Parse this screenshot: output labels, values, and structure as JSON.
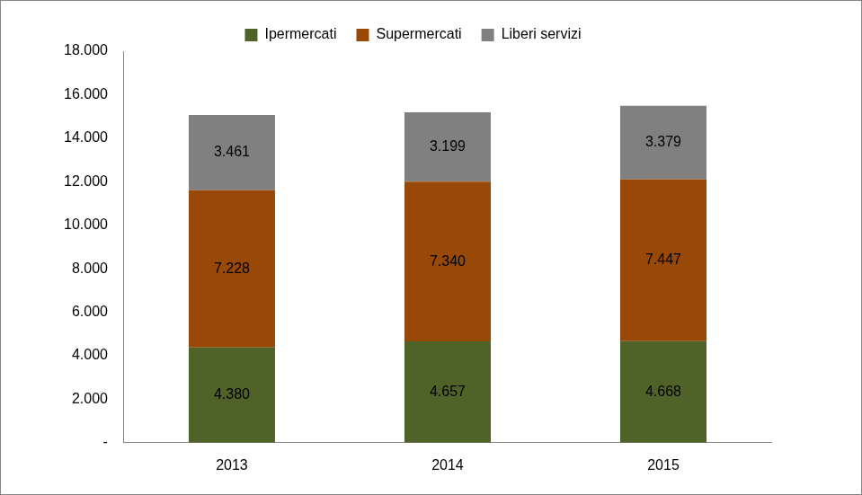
{
  "chart_data": {
    "type": "bar",
    "stacked": true,
    "data_labels": true,
    "grid": false,
    "legend": "top",
    "categories": [
      "2013",
      "2014",
      "2015"
    ],
    "series": [
      {
        "name": "Ipermercati",
        "color": "#4f6228",
        "values": [
          4380,
          4657,
          4668
        ],
        "value_labels": [
          "4.380",
          "4.657",
          "4.668"
        ]
      },
      {
        "name": "Supermercati",
        "color": "#984807",
        "values": [
          7228,
          7340,
          7447
        ],
        "value_labels": [
          "7.228",
          "7.340",
          "7.447"
        ]
      },
      {
        "name": "Liberi servizi",
        "color": "#808080",
        "values": [
          3461,
          3199,
          3379
        ],
        "value_labels": [
          "3.461",
          "3.199",
          "3.379"
        ]
      }
    ],
    "ylim": [
      0,
      18000
    ],
    "yticks": [
      {
        "value": 0,
        "label": "-"
      },
      {
        "value": 2000,
        "label": "2.000"
      },
      {
        "value": 4000,
        "label": "4.000"
      },
      {
        "value": 6000,
        "label": "6.000"
      },
      {
        "value": 8000,
        "label": "8.000"
      },
      {
        "value": 10000,
        "label": "10.000"
      },
      {
        "value": 12000,
        "label": "12.000"
      },
      {
        "value": 14000,
        "label": "14.000"
      },
      {
        "value": 16000,
        "label": "16.000"
      },
      {
        "value": 18000,
        "label": "18.000"
      }
    ]
  }
}
